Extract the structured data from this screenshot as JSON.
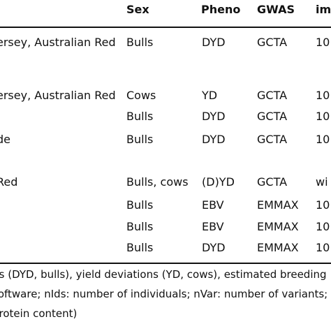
{
  "table": {
    "headers": [
      "Sex",
      "Pheno",
      "GWAS",
      "im"
    ],
    "rows": [
      {
        "population": "ersey, Australian Red",
        "sex": "Bulls",
        "pheno": "DYD",
        "gwas": "GCTA",
        "imp": "10"
      },
      {
        "population": "ersey, Australian Red",
        "sex": "Cows",
        "pheno": "YD",
        "gwas": "GCTA",
        "imp": "10"
      },
      {
        "population": "",
        "sex": "Bulls",
        "pheno": "DYD",
        "gwas": "GCTA",
        "imp": "10"
      },
      {
        "population": "de",
        "sex": "Bulls",
        "pheno": "DYD",
        "gwas": "GCTA",
        "imp": "10"
      },
      {
        "population": "Red",
        "sex": "Bulls, cows",
        "pheno": "(D)YD",
        "gwas": "GCTA",
        "imp": "wi"
      },
      {
        "population": "",
        "sex": "Bulls",
        "pheno": "EBV",
        "gwas": "EMMAX",
        "imp": "10"
      },
      {
        "population": "",
        "sex": "Bulls",
        "pheno": "EBV",
        "gwas": "EMMAX",
        "imp": "10"
      },
      {
        "population": "",
        "sex": "Bulls",
        "pheno": "DYD",
        "gwas": "EMMAX",
        "imp": "10"
      }
    ]
  },
  "footnote": {
    "line1": "ons (DYD, bulls), yield deviations (YD, cows), estimated breeding",
    "line2": "software; nIds: number of individuals; nVar: number of variants;",
    "line3": "protein content)"
  }
}
